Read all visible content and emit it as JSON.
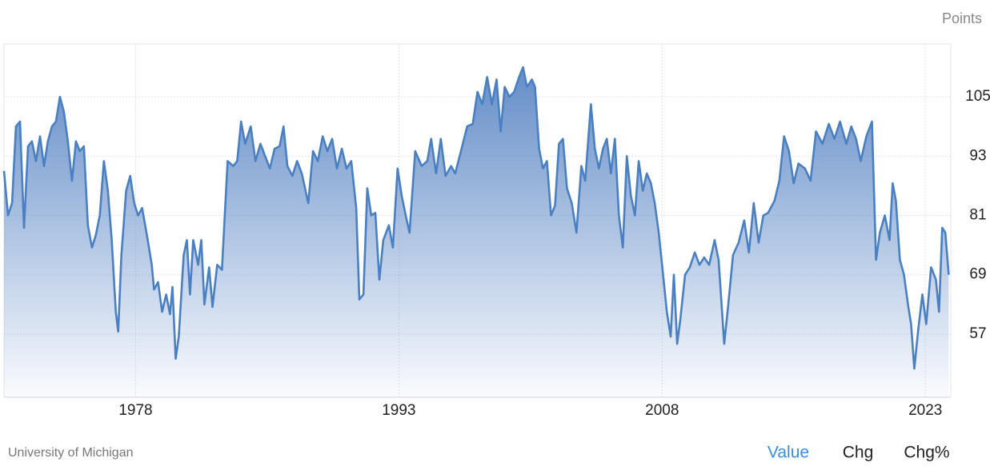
{
  "chart_data": {
    "type": "area",
    "y_label": "Points",
    "source": "University of Michigan",
    "tabs": [
      "Value",
      "Chg",
      "Chg%"
    ],
    "color": "#4a7fc1",
    "grid": true,
    "xlim": [
      1970.5,
      2024.45
    ],
    "ylim": [
      44.2,
      115.7
    ],
    "xticks": [
      1978,
      1993,
      2008,
      2023
    ],
    "yticks": [
      57,
      69,
      81,
      93,
      105
    ],
    "x": [
      1970.5,
      1970.73,
      1970.96,
      1971.18,
      1971.41,
      1971.64,
      1971.87,
      1972.09,
      1972.32,
      1972.55,
      1972.78,
      1973.0,
      1973.23,
      1973.46,
      1973.69,
      1973.91,
      1974.14,
      1974.37,
      1974.6,
      1974.82,
      1975.05,
      1975.28,
      1975.51,
      1975.73,
      1975.96,
      1976.19,
      1976.42,
      1976.64,
      1976.87,
      1977.01,
      1977.19,
      1977.46,
      1977.69,
      1977.92,
      1978.14,
      1978.37,
      1978.69,
      1978.92,
      1979.05,
      1979.28,
      1979.51,
      1979.74,
      1979.96,
      1980.1,
      1980.28,
      1980.46,
      1980.74,
      1980.92,
      1981.1,
      1981.28,
      1981.56,
      1981.74,
      1981.92,
      1982.19,
      1982.38,
      1982.65,
      1982.92,
      1983.24,
      1983.56,
      1983.79,
      1984.01,
      1984.24,
      1984.56,
      1984.83,
      1985.11,
      1985.38,
      1985.65,
      1985.92,
      1986.2,
      1986.43,
      1986.65,
      1986.93,
      1987.2,
      1987.47,
      1987.84,
      1988.11,
      1988.38,
      1988.66,
      1988.93,
      1989.2,
      1989.47,
      1989.75,
      1990.02,
      1990.29,
      1990.57,
      1990.75,
      1990.98,
      1991.2,
      1991.43,
      1991.66,
      1991.89,
      1992.11,
      1992.43,
      1992.66,
      1992.93,
      1993.16,
      1993.39,
      1993.61,
      1993.93,
      1994.3,
      1994.62,
      1994.84,
      1995.12,
      1995.39,
      1995.66,
      1995.98,
      1996.21,
      1996.57,
      1996.89,
      1997.21,
      1997.48,
      1997.75,
      1998.03,
      1998.3,
      1998.57,
      1998.8,
      1999.03,
      1999.3,
      1999.57,
      1999.85,
      2000.08,
      2000.3,
      2000.58,
      2000.76,
      2000.99,
      2001.21,
      2001.44,
      2001.67,
      2001.9,
      2002.12,
      2002.35,
      2002.58,
      2002.85,
      2003.12,
      2003.4,
      2003.62,
      2003.94,
      2004.17,
      2004.4,
      2004.63,
      2004.85,
      2005.08,
      2005.31,
      2005.54,
      2005.76,
      2005.99,
      2006.22,
      2006.45,
      2006.67,
      2006.9,
      2007.13,
      2007.36,
      2007.58,
      2007.81,
      2008.04,
      2008.27,
      2008.49,
      2008.67,
      2008.86,
      2009.04,
      2009.31,
      2009.58,
      2009.86,
      2010.13,
      2010.4,
      2010.68,
      2010.99,
      2011.22,
      2011.54,
      2011.77,
      2012.04,
      2012.36,
      2012.68,
      2012.95,
      2013.22,
      2013.5,
      2013.77,
      2014.04,
      2014.41,
      2014.68,
      2014.95,
      2015.23,
      2015.5,
      2015.77,
      2016.14,
      2016.46,
      2016.77,
      2017.14,
      2017.5,
      2017.82,
      2018.14,
      2018.5,
      2018.78,
      2019.05,
      2019.32,
      2019.64,
      2019.96,
      2020.19,
      2020.41,
      2020.69,
      2020.96,
      2021.14,
      2021.32,
      2021.55,
      2021.78,
      2022.01,
      2022.19,
      2022.37,
      2022.6,
      2022.83,
      2023.05,
      2023.33,
      2023.6,
      2023.78,
      2023.96,
      2024.14,
      2024.33
    ],
    "values": [
      90,
      81,
      83.5,
      99,
      100,
      78.5,
      95,
      96,
      92,
      97,
      91,
      96,
      99,
      100,
      105,
      102,
      96,
      88,
      96,
      94,
      95,
      79,
      74.5,
      77,
      81,
      92,
      86,
      76,
      61.5,
      57.5,
      73,
      86,
      89,
      83.5,
      81,
      82.5,
      76,
      71,
      66,
      67.5,
      61.5,
      65,
      61,
      66.5,
      52,
      56.5,
      73,
      76,
      65,
      76,
      71,
      76,
      63,
      70.5,
      62.5,
      71,
      70,
      92,
      91,
      92,
      100,
      95.5,
      99,
      92,
      95.5,
      93,
      90.5,
      94.5,
      95,
      99,
      91,
      89,
      92,
      89.5,
      83.5,
      94,
      92,
      97,
      94,
      96.5,
      90.5,
      94.5,
      90.5,
      92,
      82.5,
      64,
      65,
      86.5,
      81,
      81.5,
      68,
      76,
      79,
      74.5,
      90.5,
      85,
      81,
      77.5,
      94,
      91,
      92,
      96.5,
      89.5,
      96.5,
      89,
      91,
      89.5,
      94.5,
      99,
      99.5,
      106,
      103.5,
      109,
      103.5,
      108.5,
      98,
      107,
      105,
      106,
      109,
      111,
      107,
      108.5,
      107,
      94.5,
      90.5,
      92,
      81,
      83,
      95.5,
      96.5,
      86.5,
      83.5,
      77.5,
      91,
      88,
      103.5,
      94.5,
      90.5,
      94.5,
      96.5,
      89.5,
      96.5,
      81,
      74.5,
      93,
      85,
      81,
      92,
      86,
      89.5,
      87.5,
      83.5,
      77.5,
      69.5,
      61.5,
      56.5,
      69,
      55,
      60,
      69,
      70.5,
      73.5,
      71,
      72.5,
      71,
      76,
      72,
      55,
      63,
      73,
      75.5,
      80,
      73.5,
      83.5,
      75.5,
      81,
      81.5,
      84,
      88,
      97,
      94,
      87.5,
      91.5,
      90.5,
      88,
      98,
      95.5,
      99.5,
      96.5,
      100,
      95.5,
      99,
      96.5,
      92,
      97,
      100,
      72,
      77.5,
      81,
      76,
      87.5,
      84,
      72,
      69,
      63,
      59,
      50,
      58,
      65,
      59,
      70.5,
      68,
      61.5,
      78.5,
      77.5,
      69
    ]
  }
}
